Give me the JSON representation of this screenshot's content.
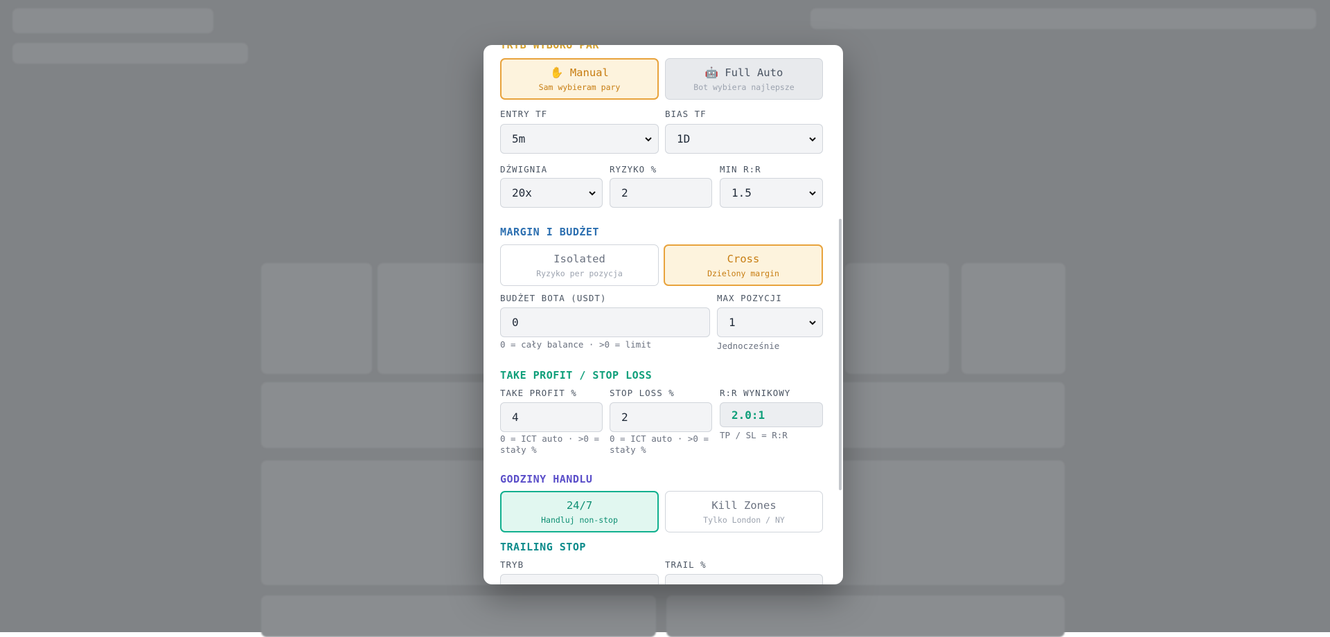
{
  "pair_mode": {
    "title": "TRYB WYBORU PAR",
    "options": [
      {
        "label": "✋ Manual",
        "sub": "Sam wybieram pary"
      },
      {
        "label": "🤖 Full Auto",
        "sub": "Bot wybiera najlepsze"
      }
    ]
  },
  "timeframes": [
    {
      "label": "ENTRY TF",
      "value": "5m"
    },
    {
      "label": "BIAS TF",
      "value": "1D"
    }
  ],
  "risk": [
    {
      "label": "DŹWIGNIA",
      "value": "20x"
    },
    {
      "label": "RYZYKO %",
      "value": "2"
    },
    {
      "label": "MIN R:R",
      "value": "1.5"
    }
  ],
  "margin": {
    "title": "MARGIN I BUDŻET",
    "options": [
      {
        "label": "Isolated",
        "sub": "Ryzyko per pozycja"
      },
      {
        "label": "Cross",
        "sub": "Dzielony margin"
      }
    ],
    "budget": {
      "label": "BUDŻET BOTA (USDT)",
      "value": "0",
      "hint": "0 = cały balance · >0 = limit"
    },
    "max_positions": {
      "label": "MAX POZYCJI",
      "value": "1",
      "hint": "Jednocześnie"
    }
  },
  "tp_sl": {
    "title": "TAKE PROFIT / STOP LOSS",
    "fields": [
      {
        "label": "TAKE PROFIT %",
        "value": "4",
        "hint": "0 = ICT auto · >0 = stały %"
      },
      {
        "label": "STOP LOSS %",
        "value": "2",
        "hint": "0 = ICT auto · >0 = stały %"
      },
      {
        "label": "R:R WYNIKOWY",
        "value": "2.0:1",
        "hint": "TP / SL = R:R"
      }
    ]
  },
  "hours": {
    "title": "GODZINY HANDLU",
    "options": [
      {
        "label": "24/7",
        "sub": "Handluj non-stop"
      },
      {
        "label": "Kill Zones",
        "sub": "Tylko London / NY"
      }
    ]
  },
  "trailing": {
    "title": "TRAILING STOP",
    "fields": [
      "TRYB",
      "TRAIL %"
    ]
  }
}
